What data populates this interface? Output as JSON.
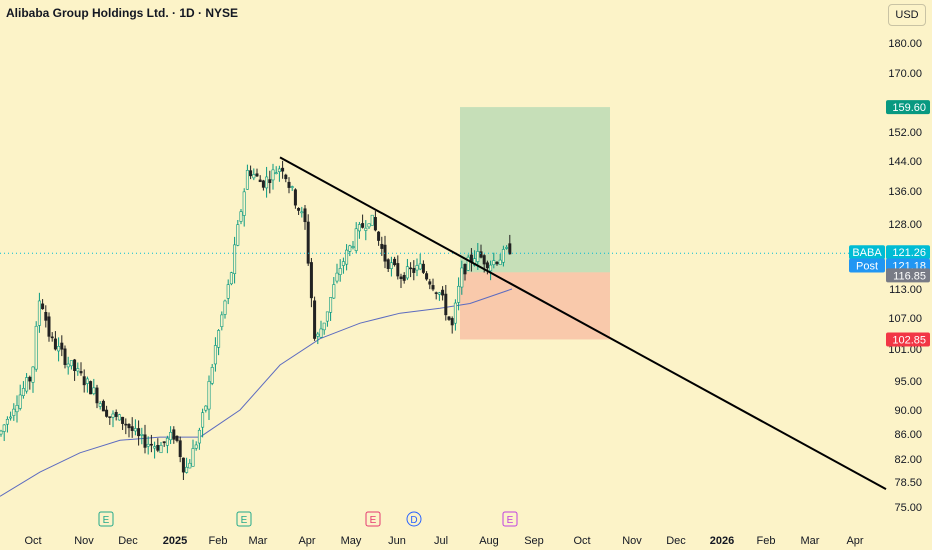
{
  "header": {
    "title": "Alibaba Group Holdings Ltd. · 1D · NYSE",
    "currency": "USD"
  },
  "chart_data": {
    "type": "candlestick",
    "symbol": "BABA",
    "x_ticks": [
      "Oct",
      "Nov",
      "Dec",
      "2025",
      "Feb",
      "Mar",
      "Apr",
      "May",
      "Jun",
      "Jul",
      "Aug",
      "Sep",
      "Oct",
      "Nov",
      "Dec",
      "2026",
      "Feb",
      "Mar",
      "Apr"
    ],
    "y_ticks": [
      180,
      170,
      152,
      144,
      136,
      128,
      113,
      107,
      101,
      95,
      90,
      86,
      82,
      78.5,
      75
    ],
    "y_tick_labels": [
      "180.00",
      "170.00",
      "152.00",
      "144.00",
      "136.00",
      "128.00",
      "113.00",
      "107.00",
      "101.00",
      "95.00",
      "90.00",
      "86.00",
      "82.00",
      "78.50",
      "75.00"
    ],
    "price_tags": [
      {
        "label": "159.60",
        "color": "#089981"
      },
      {
        "label": "121.26",
        "color": "#00bcd4",
        "name": "BABA"
      },
      {
        "label": "121.18",
        "color": "#2196f3",
        "name": "Post"
      },
      {
        "label": "116.85",
        "color": "#787b86"
      },
      {
        "label": "102.85",
        "color": "#f23645"
      }
    ],
    "trendline": {
      "from": [
        "Mar",
        145
      ],
      "to": [
        "Apr 2026",
        77.5
      ]
    },
    "position": {
      "entry": 116.85,
      "target": 159.6,
      "stop": 102.85
    },
    "events": [
      {
        "letter": "E",
        "color": "#22a88a"
      },
      {
        "letter": "E",
        "color": "#22a88a"
      },
      {
        "letter": "E",
        "color": "#e53970"
      },
      {
        "letter": "D",
        "color": "#2962ff"
      },
      {
        "letter": "E",
        "color": "#c040e0"
      }
    ],
    "moving_average_color": "#5c6bc0",
    "up_color": "#089981",
    "down_color": "#222222"
  }
}
